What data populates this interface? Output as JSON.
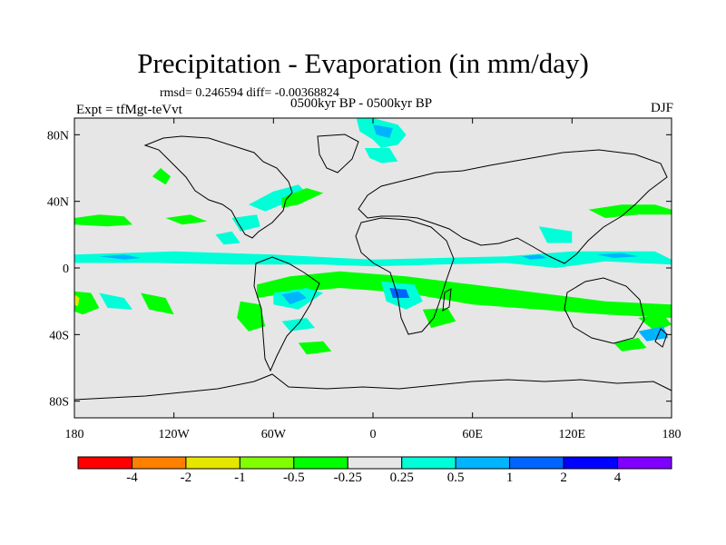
{
  "title": "Precipitation - Evaporation (in mm/day)",
  "stats": "rmsd= 0.246594 diff= -0.00368824",
  "period": "0500kyr BP - 0500kyr BP",
  "experiment": "Expt = tfMgt-teVvt",
  "season": "DJF",
  "map": {
    "lon_range": [
      -180,
      180
    ],
    "lat_range": [
      -90,
      90
    ],
    "background_color": "#e6e6e6",
    "y_ticks": [
      {
        "lat": 80,
        "label": "80N"
      },
      {
        "lat": 40,
        "label": "40N"
      },
      {
        "lat": 0,
        "label": "0"
      },
      {
        "lat": -40,
        "label": "40S"
      },
      {
        "lat": -80,
        "label": "80S"
      }
    ],
    "x_ticks": [
      {
        "lon": -180,
        "label": "180"
      },
      {
        "lon": -120,
        "label": "120W"
      },
      {
        "lon": -60,
        "label": "60W"
      },
      {
        "lon": 0,
        "label": "0"
      },
      {
        "lon": 60,
        "label": "60E"
      },
      {
        "lon": 120,
        "label": "120E"
      },
      {
        "lon": 180,
        "label": "180"
      }
    ]
  },
  "colorbar": {
    "colors": [
      "#ff0000",
      "#ff8000",
      "#e6e600",
      "#80ff00",
      "#00ff00",
      "#e6e6e6",
      "#00ffd8",
      "#00b4ff",
      "#0064ff",
      "#0000ff",
      "#8000ff"
    ],
    "labels": [
      "-4",
      "-2",
      "-1",
      "-0.5",
      "-0.25",
      "0.25",
      "0.5",
      "1",
      "2",
      "4"
    ]
  },
  "regions": [
    {
      "level": "0.25",
      "color": "#00ffd8",
      "pts": [
        [
          -180,
          8
        ],
        [
          -120,
          10
        ],
        [
          -60,
          8
        ],
        [
          -20,
          6
        ],
        [
          0,
          5
        ],
        [
          40,
          6
        ],
        [
          80,
          7
        ],
        [
          120,
          10
        ],
        [
          170,
          10
        ],
        [
          180,
          5
        ],
        [
          180,
          2
        ],
        [
          140,
          4
        ],
        [
          110,
          0
        ],
        [
          80,
          3
        ],
        [
          40,
          2
        ],
        [
          0,
          1
        ],
        [
          -30,
          2
        ],
        [
          -80,
          2
        ],
        [
          -130,
          3
        ],
        [
          -180,
          3
        ]
      ]
    },
    {
      "level": "0.5",
      "color": "#00b4ff",
      "pts": [
        [
          -165,
          7
        ],
        [
          -150,
          8
        ],
        [
          -140,
          6
        ],
        [
          -150,
          5
        ]
      ]
    },
    {
      "level": "0.5",
      "color": "#00b4ff",
      "pts": [
        [
          90,
          7
        ],
        [
          100,
          8
        ],
        [
          105,
          6
        ],
        [
          95,
          5
        ]
      ]
    },
    {
      "level": "0.5",
      "color": "#00b4ff",
      "pts": [
        [
          135,
          8
        ],
        [
          150,
          9
        ],
        [
          160,
          7
        ],
        [
          145,
          6
        ]
      ]
    },
    {
      "level": "0.25",
      "color": "#00ffd8",
      "pts": [
        [
          -10,
          90
        ],
        [
          0,
          90
        ],
        [
          15,
          86
        ],
        [
          20,
          80
        ],
        [
          15,
          74
        ],
        [
          5,
          72
        ],
        [
          0,
          77
        ],
        [
          -8,
          82
        ]
      ]
    },
    {
      "level": "0.5",
      "color": "#00b4ff",
      "pts": [
        [
          0,
          86
        ],
        [
          12,
          84
        ],
        [
          10,
          78
        ],
        [
          2,
          80
        ]
      ]
    },
    {
      "level": "0.25",
      "color": "#00ffd8",
      "pts": [
        [
          -5,
          72
        ],
        [
          10,
          72
        ],
        [
          15,
          64
        ],
        [
          5,
          63
        ],
        [
          -2,
          66
        ]
      ]
    },
    {
      "level": "0.25",
      "color": "#00ffd8",
      "pts": [
        [
          -75,
          38
        ],
        [
          -60,
          46
        ],
        [
          -45,
          50
        ],
        [
          -40,
          45
        ],
        [
          -55,
          38
        ],
        [
          -65,
          34
        ]
      ]
    },
    {
      "level": "0.25",
      "color": "#00ffd8",
      "pts": [
        [
          -85,
          30
        ],
        [
          -70,
          32
        ],
        [
          -68,
          25
        ],
        [
          -80,
          22
        ]
      ]
    },
    {
      "level": "0.25",
      "color": "#00ffd8",
      "pts": [
        [
          -95,
          20
        ],
        [
          -85,
          22
        ],
        [
          -80,
          15
        ],
        [
          -90,
          14
        ]
      ]
    },
    {
      "level": "-0.25",
      "color": "#00ff00",
      "pts": [
        [
          -180,
          30
        ],
        [
          -165,
          32
        ],
        [
          -150,
          31
        ],
        [
          -145,
          26
        ],
        [
          -160,
          25
        ],
        [
          -180,
          26
        ]
      ]
    },
    {
      "level": "-0.25",
      "color": "#00ff00",
      "pts": [
        [
          -125,
          30
        ],
        [
          -110,
          32
        ],
        [
          -100,
          28
        ],
        [
          -115,
          26
        ]
      ]
    },
    {
      "level": "-0.25",
      "color": "#00ff00",
      "pts": [
        [
          -55,
          42
        ],
        [
          -40,
          48
        ],
        [
          -30,
          45
        ],
        [
          -45,
          38
        ],
        [
          -55,
          36
        ]
      ]
    },
    {
      "level": "-0.25",
      "color": "#00ff00",
      "pts": [
        [
          -133,
          55
        ],
        [
          -125,
          50
        ],
        [
          -122,
          55
        ],
        [
          -128,
          60
        ]
      ]
    },
    {
      "level": "-0.25",
      "color": "#00ff00",
      "pts": [
        [
          -70,
          -10
        ],
        [
          -50,
          -5
        ],
        [
          -20,
          -2
        ],
        [
          20,
          -5
        ],
        [
          60,
          -10
        ],
        [
          100,
          -15
        ],
        [
          140,
          -20
        ],
        [
          180,
          -22
        ],
        [
          180,
          -30
        ],
        [
          140,
          -28
        ],
        [
          100,
          -25
        ],
        [
          60,
          -22
        ],
        [
          20,
          -15
        ],
        [
          -20,
          -12
        ],
        [
          -50,
          -15
        ],
        [
          -70,
          -18
        ]
      ]
    },
    {
      "level": "0.25",
      "color": "#00ffd8",
      "pts": [
        [
          -60,
          -15
        ],
        [
          -40,
          -12
        ],
        [
          -30,
          -15
        ],
        [
          -45,
          -25
        ],
        [
          -60,
          -22
        ]
      ]
    },
    {
      "level": "0.5",
      "color": "#00b4ff",
      "pts": [
        [
          -55,
          -16
        ],
        [
          -45,
          -14
        ],
        [
          -40,
          -18
        ],
        [
          -50,
          -22
        ]
      ]
    },
    {
      "level": "0.25",
      "color": "#00ffd8",
      "pts": [
        [
          5,
          -8
        ],
        [
          25,
          -10
        ],
        [
          30,
          -20
        ],
        [
          20,
          -25
        ],
        [
          8,
          -20
        ]
      ]
    },
    {
      "level": "1",
      "color": "#0064ff",
      "pts": [
        [
          10,
          -12
        ],
        [
          20,
          -13
        ],
        [
          22,
          -18
        ],
        [
          12,
          -18
        ]
      ]
    },
    {
      "level": "-0.25",
      "color": "#00ff00",
      "pts": [
        [
          -180,
          -14
        ],
        [
          -170,
          -15
        ],
        [
          -165,
          -24
        ],
        [
          -175,
          -28
        ],
        [
          -180,
          -26
        ]
      ]
    },
    {
      "level": "-1",
      "color": "#e6e600",
      "pts": [
        [
          -180,
          -16
        ],
        [
          -177,
          -18
        ],
        [
          -178,
          -23
        ],
        [
          -180,
          -22
        ]
      ]
    },
    {
      "level": "-0.25",
      "color": "#00ff00",
      "pts": [
        [
          -140,
          -15
        ],
        [
          -125,
          -18
        ],
        [
          -120,
          -28
        ],
        [
          -135,
          -25
        ]
      ]
    },
    {
      "level": "0.25",
      "color": "#00ffd8",
      "pts": [
        [
          -165,
          -15
        ],
        [
          -150,
          -18
        ],
        [
          -145,
          -25
        ],
        [
          -160,
          -24
        ]
      ]
    },
    {
      "level": "-0.25",
      "color": "#00ff00",
      "pts": [
        [
          -80,
          -20
        ],
        [
          -68,
          -22
        ],
        [
          -65,
          -35
        ],
        [
          -75,
          -38
        ],
        [
          -82,
          -30
        ]
      ]
    },
    {
      "level": "-0.25",
      "color": "#00ff00",
      "pts": [
        [
          -45,
          -45
        ],
        [
          -30,
          -44
        ],
        [
          -25,
          -50
        ],
        [
          -40,
          -52
        ]
      ]
    },
    {
      "level": "0.25",
      "color": "#00ffd8",
      "pts": [
        [
          -55,
          -32
        ],
        [
          -40,
          -30
        ],
        [
          -35,
          -36
        ],
        [
          -50,
          -38
        ]
      ]
    },
    {
      "level": "-0.25",
      "color": "#00ff00",
      "pts": [
        [
          30,
          -25
        ],
        [
          45,
          -24
        ],
        [
          50,
          -32
        ],
        [
          35,
          -36
        ]
      ]
    },
    {
      "level": "-0.25",
      "color": "#00ff00",
      "pts": [
        [
          160,
          -30
        ],
        [
          175,
          -28
        ],
        [
          180,
          -34
        ],
        [
          170,
          -38
        ]
      ]
    },
    {
      "level": "0.5",
      "color": "#00b4ff",
      "pts": [
        [
          160,
          -38
        ],
        [
          175,
          -35
        ],
        [
          178,
          -42
        ],
        [
          165,
          -44
        ]
      ]
    },
    {
      "level": "-0.25",
      "color": "#00ff00",
      "pts": [
        [
          145,
          -45
        ],
        [
          160,
          -42
        ],
        [
          165,
          -48
        ],
        [
          150,
          -50
        ]
      ]
    },
    {
      "level": "0.25",
      "color": "#00ffd8",
      "pts": [
        [
          100,
          25
        ],
        [
          120,
          22
        ],
        [
          120,
          15
        ],
        [
          105,
          15
        ]
      ]
    },
    {
      "level": "-0.25",
      "color": "#00ff00",
      "pts": [
        [
          130,
          35
        ],
        [
          150,
          38
        ],
        [
          170,
          38
        ],
        [
          180,
          35
        ],
        [
          180,
          32
        ],
        [
          160,
          32
        ],
        [
          140,
          30
        ]
      ]
    }
  ]
}
